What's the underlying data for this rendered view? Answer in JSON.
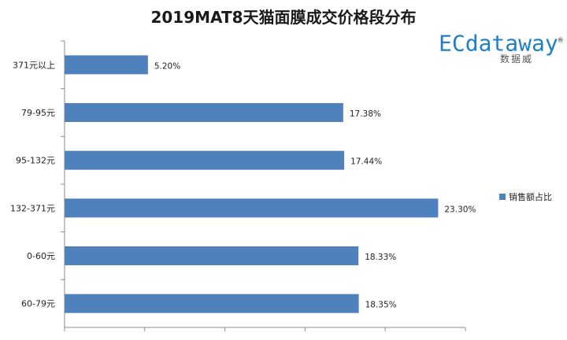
{
  "chart_data": {
    "type": "bar",
    "orientation": "horizontal",
    "title": "2019MAT8天猫面膜成交价格段分布",
    "categories": [
      "371元以上",
      "79-95元",
      "95-132元",
      "132-371元",
      "0-60元",
      "60-79元"
    ],
    "series": [
      {
        "name": "销售额占比",
        "values": [
          5.2,
          17.38,
          17.44,
          23.3,
          18.33,
          18.35
        ]
      }
    ],
    "data_labels": [
      "5.20%",
      "17.38%",
      "17.44%",
      "23.30%",
      "18.33%",
      "18.35%"
    ],
    "xlim": [
      0,
      25
    ],
    "grid": false,
    "legend_position": "right",
    "bar_color": "#4f81bd"
  },
  "logo": {
    "main": "ECdataway",
    "registered": "®",
    "sub": "数据威"
  }
}
